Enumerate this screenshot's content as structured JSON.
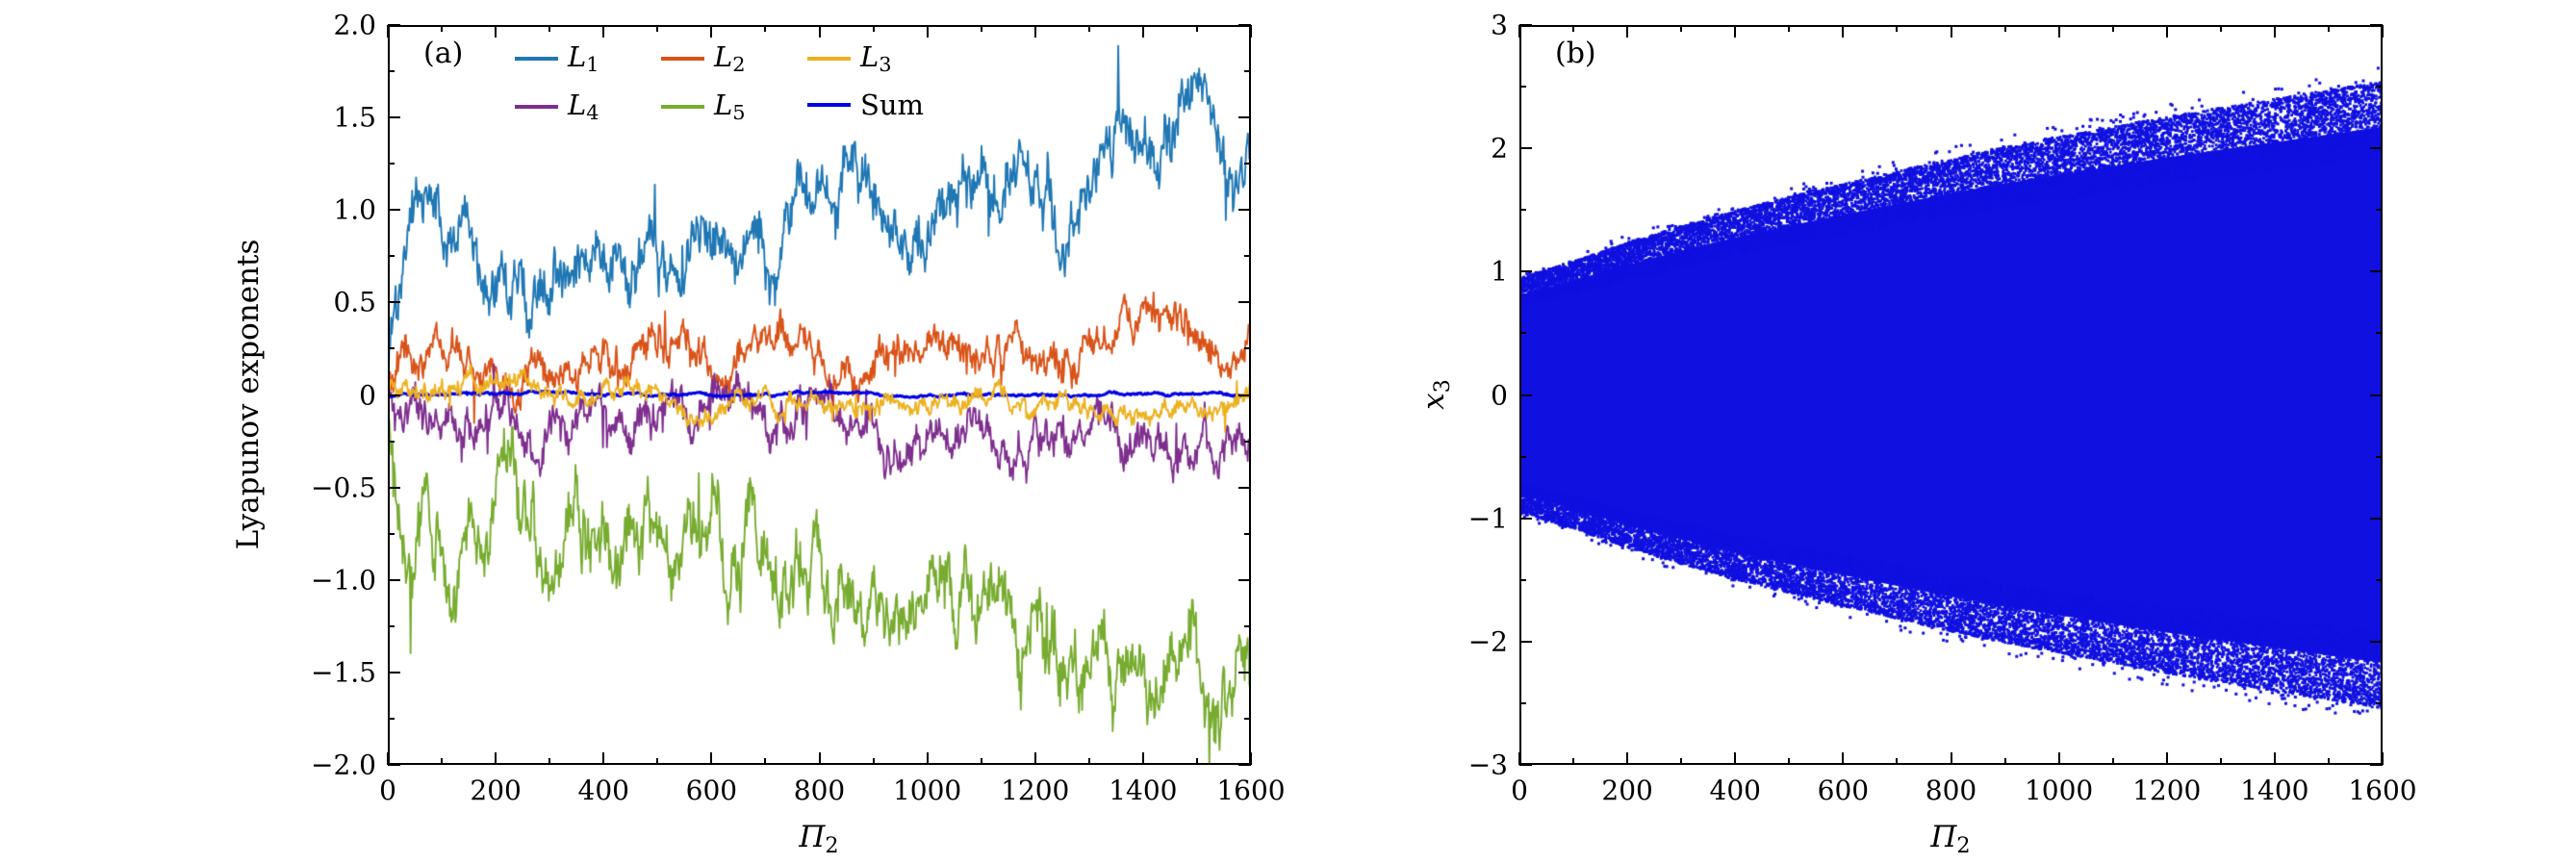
{
  "chart_data": [
    {
      "id": "panel_a",
      "type": "line",
      "panel_label": "(a)",
      "xlabel": {
        "main": "Π",
        "sub": "2"
      },
      "ylabel": "Lyapunov exponents",
      "xlim": [
        0,
        1600
      ],
      "ylim": [
        -2.0,
        2.0
      ],
      "xticks": [
        0,
        200,
        400,
        600,
        800,
        1000,
        1200,
        1400,
        1600
      ],
      "xtick_labels": [
        "0",
        "200",
        "400",
        "600",
        "800",
        "1000",
        "1200",
        "1400",
        "1600"
      ],
      "yticks": [
        2.0,
        1.5,
        1.0,
        0.5,
        0,
        -0.5,
        -1.0,
        -1.5,
        -2.0
      ],
      "ytick_labels": [
        "2.0",
        "1.5",
        "1.0",
        "0.5",
        "0",
        "−0.5",
        "−1.0",
        "−1.5",
        "−2.0"
      ],
      "grid": false,
      "legend_position": "top-inside-two-rows",
      "series": [
        {
          "name": "L",
          "sub": "1",
          "color": "#1f77b4",
          "noise": 0.09,
          "trend_x": [
            0,
            10,
            30,
            100,
            200,
            300,
            400,
            500,
            600,
            700,
            800,
            900,
            1000,
            1100,
            1200,
            1300,
            1400,
            1500,
            1600
          ],
          "trend_y": [
            0.05,
            0.75,
            0.88,
            0.82,
            0.8,
            0.78,
            0.8,
            0.82,
            0.86,
            0.92,
            0.97,
            1.0,
            1.02,
            1.1,
            1.18,
            1.27,
            1.38,
            1.47,
            1.55
          ]
        },
        {
          "name": "L",
          "sub": "2",
          "color": "#d95319",
          "noise": 0.055,
          "trend_x": [
            0,
            10,
            50,
            200,
            400,
            600,
            800,
            1000,
            1200,
            1400,
            1600
          ],
          "trend_y": [
            0.02,
            0.13,
            0.16,
            0.17,
            0.18,
            0.2,
            0.22,
            0.25,
            0.29,
            0.33,
            0.37
          ]
        },
        {
          "name": "L",
          "sub": "3",
          "color": "#edb120",
          "noise": 0.03,
          "trend_x": [
            0,
            50,
            400,
            800,
            1000,
            1200,
            1400,
            1600
          ],
          "trend_y": [
            -0.01,
            -0.01,
            -0.01,
            -0.02,
            -0.02,
            -0.03,
            -0.04,
            -0.05
          ]
        },
        {
          "name": "L",
          "sub": "4",
          "color": "#7e2f8e",
          "noise": 0.06,
          "trend_x": [
            0,
            10,
            50,
            200,
            400,
            600,
            800,
            1000,
            1200,
            1400,
            1600
          ],
          "trend_y": [
            -0.03,
            -0.13,
            -0.15,
            -0.16,
            -0.16,
            -0.17,
            -0.18,
            -0.2,
            -0.23,
            -0.26,
            -0.28
          ]
        },
        {
          "name": "L",
          "sub": "5",
          "color": "#77ac30",
          "noise": 0.11,
          "trend_x": [
            0,
            10,
            40,
            100,
            200,
            300,
            400,
            500,
            600,
            700,
            800,
            900,
            1000,
            1100,
            1200,
            1300,
            1400,
            1500,
            1600
          ],
          "trend_y": [
            -0.1,
            -0.55,
            -0.8,
            -0.78,
            -0.74,
            -0.72,
            -0.74,
            -0.78,
            -0.84,
            -0.9,
            -0.97,
            -1.03,
            -1.1,
            -1.2,
            -1.3,
            -1.42,
            -1.52,
            -1.6,
            -1.67
          ]
        },
        {
          "name": "Sum",
          "sub": "",
          "color": "#0000e6",
          "noise": 0.004,
          "trend_x": [
            0,
            1600
          ],
          "trend_y": [
            0,
            0
          ]
        }
      ]
    },
    {
      "id": "panel_b",
      "type": "scatter",
      "panel_label": "(b)",
      "xlabel": {
        "main": "Π",
        "sub": "2"
      },
      "ylabel": {
        "main": "x",
        "sub": "3"
      },
      "xlim": [
        0,
        1600
      ],
      "ylim": [
        -3,
        3
      ],
      "xticks": [
        0,
        200,
        400,
        600,
        800,
        1000,
        1200,
        1400,
        1600
      ],
      "xtick_labels": [
        "0",
        "200",
        "400",
        "600",
        "800",
        "1000",
        "1200",
        "1400",
        "1600"
      ],
      "yticks": [
        3,
        2,
        1,
        0,
        -1,
        -2,
        -3
      ],
      "ytick_labels": [
        "3",
        "2",
        "1",
        "0",
        "−1",
        "−2",
        "−3"
      ],
      "grid": false,
      "color": "#1010e0",
      "description": "dense symmetric chaotic point cloud widening with Π2",
      "envelope_x": [
        0,
        100,
        200,
        300,
        400,
        500,
        600,
        700,
        800,
        900,
        1000,
        1100,
        1200,
        1300,
        1400,
        1500,
        1600
      ],
      "envelope_y": [
        0.92,
        1.05,
        1.2,
        1.33,
        1.45,
        1.56,
        1.66,
        1.76,
        1.86,
        1.95,
        2.03,
        2.11,
        2.19,
        2.26,
        2.33,
        2.4,
        2.47
      ]
    }
  ]
}
